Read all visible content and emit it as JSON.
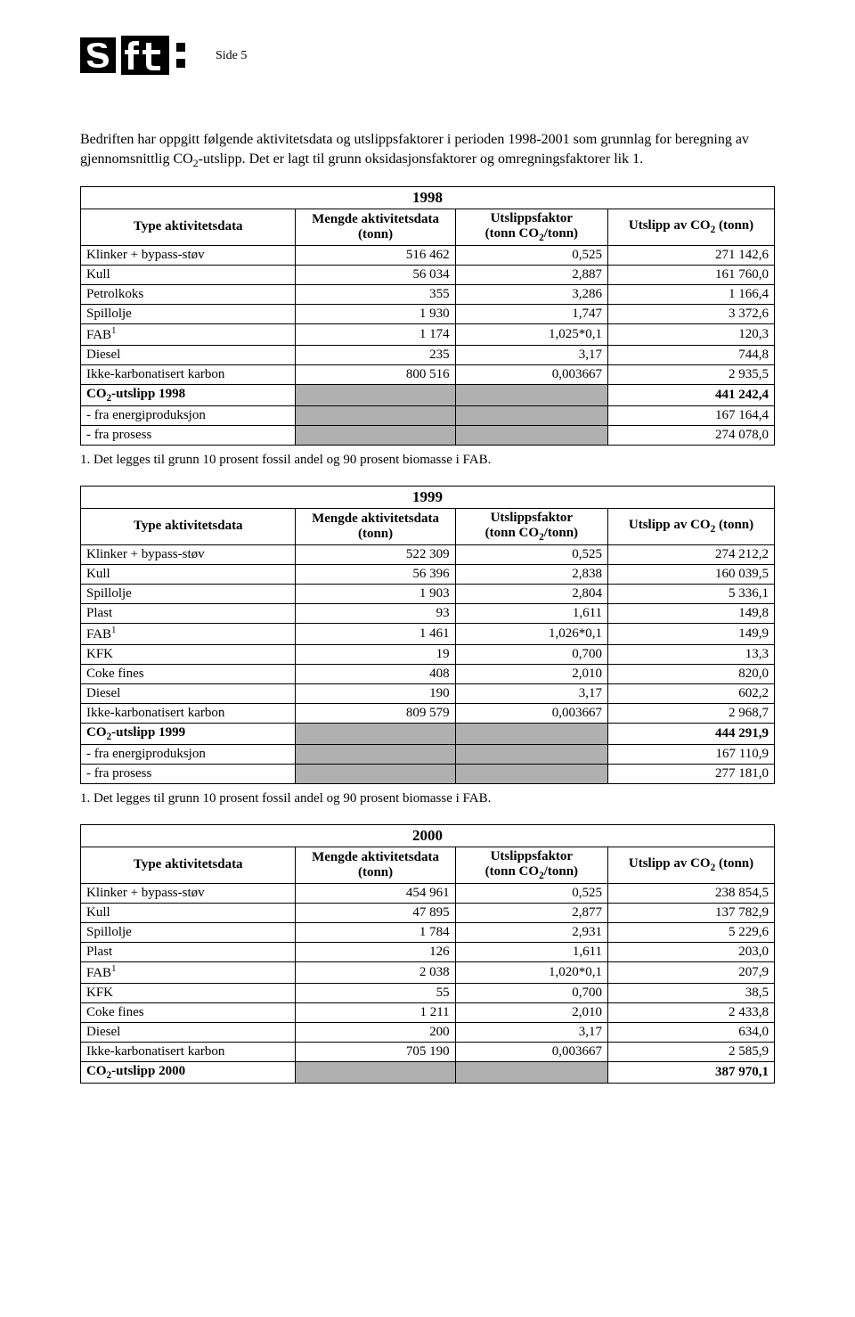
{
  "page": {
    "side_label": "Side 5",
    "intro_line1": "Bedriften har oppgitt følgende aktivitetsdata og utslippsfaktorer i perioden 1998-2001 som grunnlag for beregning av gjennomsnittlig CO",
    "intro_sub1": "2",
    "intro_line2": "-utslipp. Det er lagt til grunn oksidasjonsfaktorer og omregningsfaktorer lik 1."
  },
  "headers": {
    "type": "Type aktivitetsdata",
    "mengde1": "Mengde aktivitetsdata",
    "mengde2": "(tonn)",
    "faktor1": "Utslippsfaktor",
    "faktor2a": "(tonn CO",
    "faktor2sub": "2",
    "faktor2b": "/tonn)",
    "utslipp1": "Utslipp av CO",
    "utslipp_sub": "2",
    "utslipp2": " (tonn)"
  },
  "t1998": {
    "year": "1998",
    "rows": [
      {
        "lbl": "Klinker + bypass-støv",
        "m": "516 462",
        "f": "0,525",
        "u": "271 142,6"
      },
      {
        "lbl": "Kull",
        "m": "56 034",
        "f": "2,887",
        "u": "161 760,0"
      },
      {
        "lbl": "Petrolkoks",
        "m": "355",
        "f": "3,286",
        "u": "1 166,4"
      },
      {
        "lbl": "Spillolje",
        "m": "1 930",
        "f": "1,747",
        "u": "3 372,6"
      }
    ],
    "fab": {
      "lbl_a": "FAB",
      "sup": "1",
      "m": "1 174",
      "f": "1,025*0,1",
      "u": "120,3"
    },
    "rows2": [
      {
        "lbl": "Diesel",
        "m": "235",
        "f": "3,17",
        "u": "744,8"
      },
      {
        "lbl": "Ikke-karbonatisert karbon",
        "m": "800 516",
        "f": "0,003667",
        "u": "2 935,5"
      }
    ],
    "total": {
      "lbl_a": "CO",
      "sub": "2",
      "lbl_b": "-utslipp 1998",
      "u": "441 242,4"
    },
    "sub1": {
      "lbl": "- fra energiproduksjon",
      "u": "167 164,4"
    },
    "sub2": {
      "lbl": "- fra prosess",
      "u": "274 078,0"
    },
    "footnote": "1. Det legges til grunn 10 prosent fossil andel og 90 prosent biomasse i FAB."
  },
  "t1999": {
    "year": "1999",
    "rows": [
      {
        "lbl": "Klinker + bypass-støv",
        "m": "522 309",
        "f": "0,525",
        "u": "274 212,2"
      },
      {
        "lbl": "Kull",
        "m": "56 396",
        "f": "2,838",
        "u": "160 039,5"
      },
      {
        "lbl": "Spillolje",
        "m": "1 903",
        "f": "2,804",
        "u": "5 336,1"
      },
      {
        "lbl": "Plast",
        "m": "93",
        "f": "1,611",
        "u": "149,8"
      }
    ],
    "fab": {
      "lbl_a": "FAB",
      "sup": "1",
      "m": "1 461",
      "f": "1,026*0,1",
      "u": "149,9"
    },
    "rows2": [
      {
        "lbl": "KFK",
        "m": "19",
        "f": "0,700",
        "u": "13,3"
      },
      {
        "lbl": "Coke fines",
        "m": "408",
        "f": "2,010",
        "u": "820,0"
      },
      {
        "lbl": "Diesel",
        "m": "190",
        "f": "3,17",
        "u": "602,2"
      },
      {
        "lbl": "Ikke-karbonatisert karbon",
        "m": "809 579",
        "f": "0,003667",
        "u": "2 968,7"
      }
    ],
    "total": {
      "lbl_a": "CO",
      "sub": "2",
      "lbl_b": "-utslipp 1999",
      "u": "444 291,9"
    },
    "sub1": {
      "lbl": "- fra energiproduksjon",
      "u": "167 110,9"
    },
    "sub2": {
      "lbl": "- fra prosess",
      "u": "277 181,0"
    },
    "footnote": "1. Det legges til grunn 10 prosent fossil andel og 90 prosent biomasse i FAB."
  },
  "t2000": {
    "year": "2000",
    "rows": [
      {
        "lbl": "Klinker + bypass-støv",
        "m": "454 961",
        "f": "0,525",
        "u": "238 854,5"
      },
      {
        "lbl": "Kull",
        "m": "47 895",
        "f": "2,877",
        "u": "137 782,9"
      },
      {
        "lbl": "Spillolje",
        "m": "1 784",
        "f": "2,931",
        "u": "5 229,6"
      },
      {
        "lbl": "Plast",
        "m": "126",
        "f": "1,611",
        "u": "203,0"
      }
    ],
    "fab": {
      "lbl_a": "FAB",
      "sup": "1",
      "m": "2 038",
      "f": "1,020*0,1",
      "u": "207,9"
    },
    "rows2": [
      {
        "lbl": "KFK",
        "m": "55",
        "f": "0,700",
        "u": "38,5"
      },
      {
        "lbl": "Coke fines",
        "m": "1 211",
        "f": "2,010",
        "u": "2 433,8"
      },
      {
        "lbl": "Diesel",
        "m": "200",
        "f": "3,17",
        "u": "634,0"
      },
      {
        "lbl": "Ikke-karbonatisert karbon",
        "m": "705 190",
        "f": "0,003667",
        "u": "2 585,9"
      }
    ],
    "total": {
      "lbl_a": "CO",
      "sub": "2",
      "lbl_b": "-utslipp 2000",
      "u": "387 970,1"
    }
  }
}
